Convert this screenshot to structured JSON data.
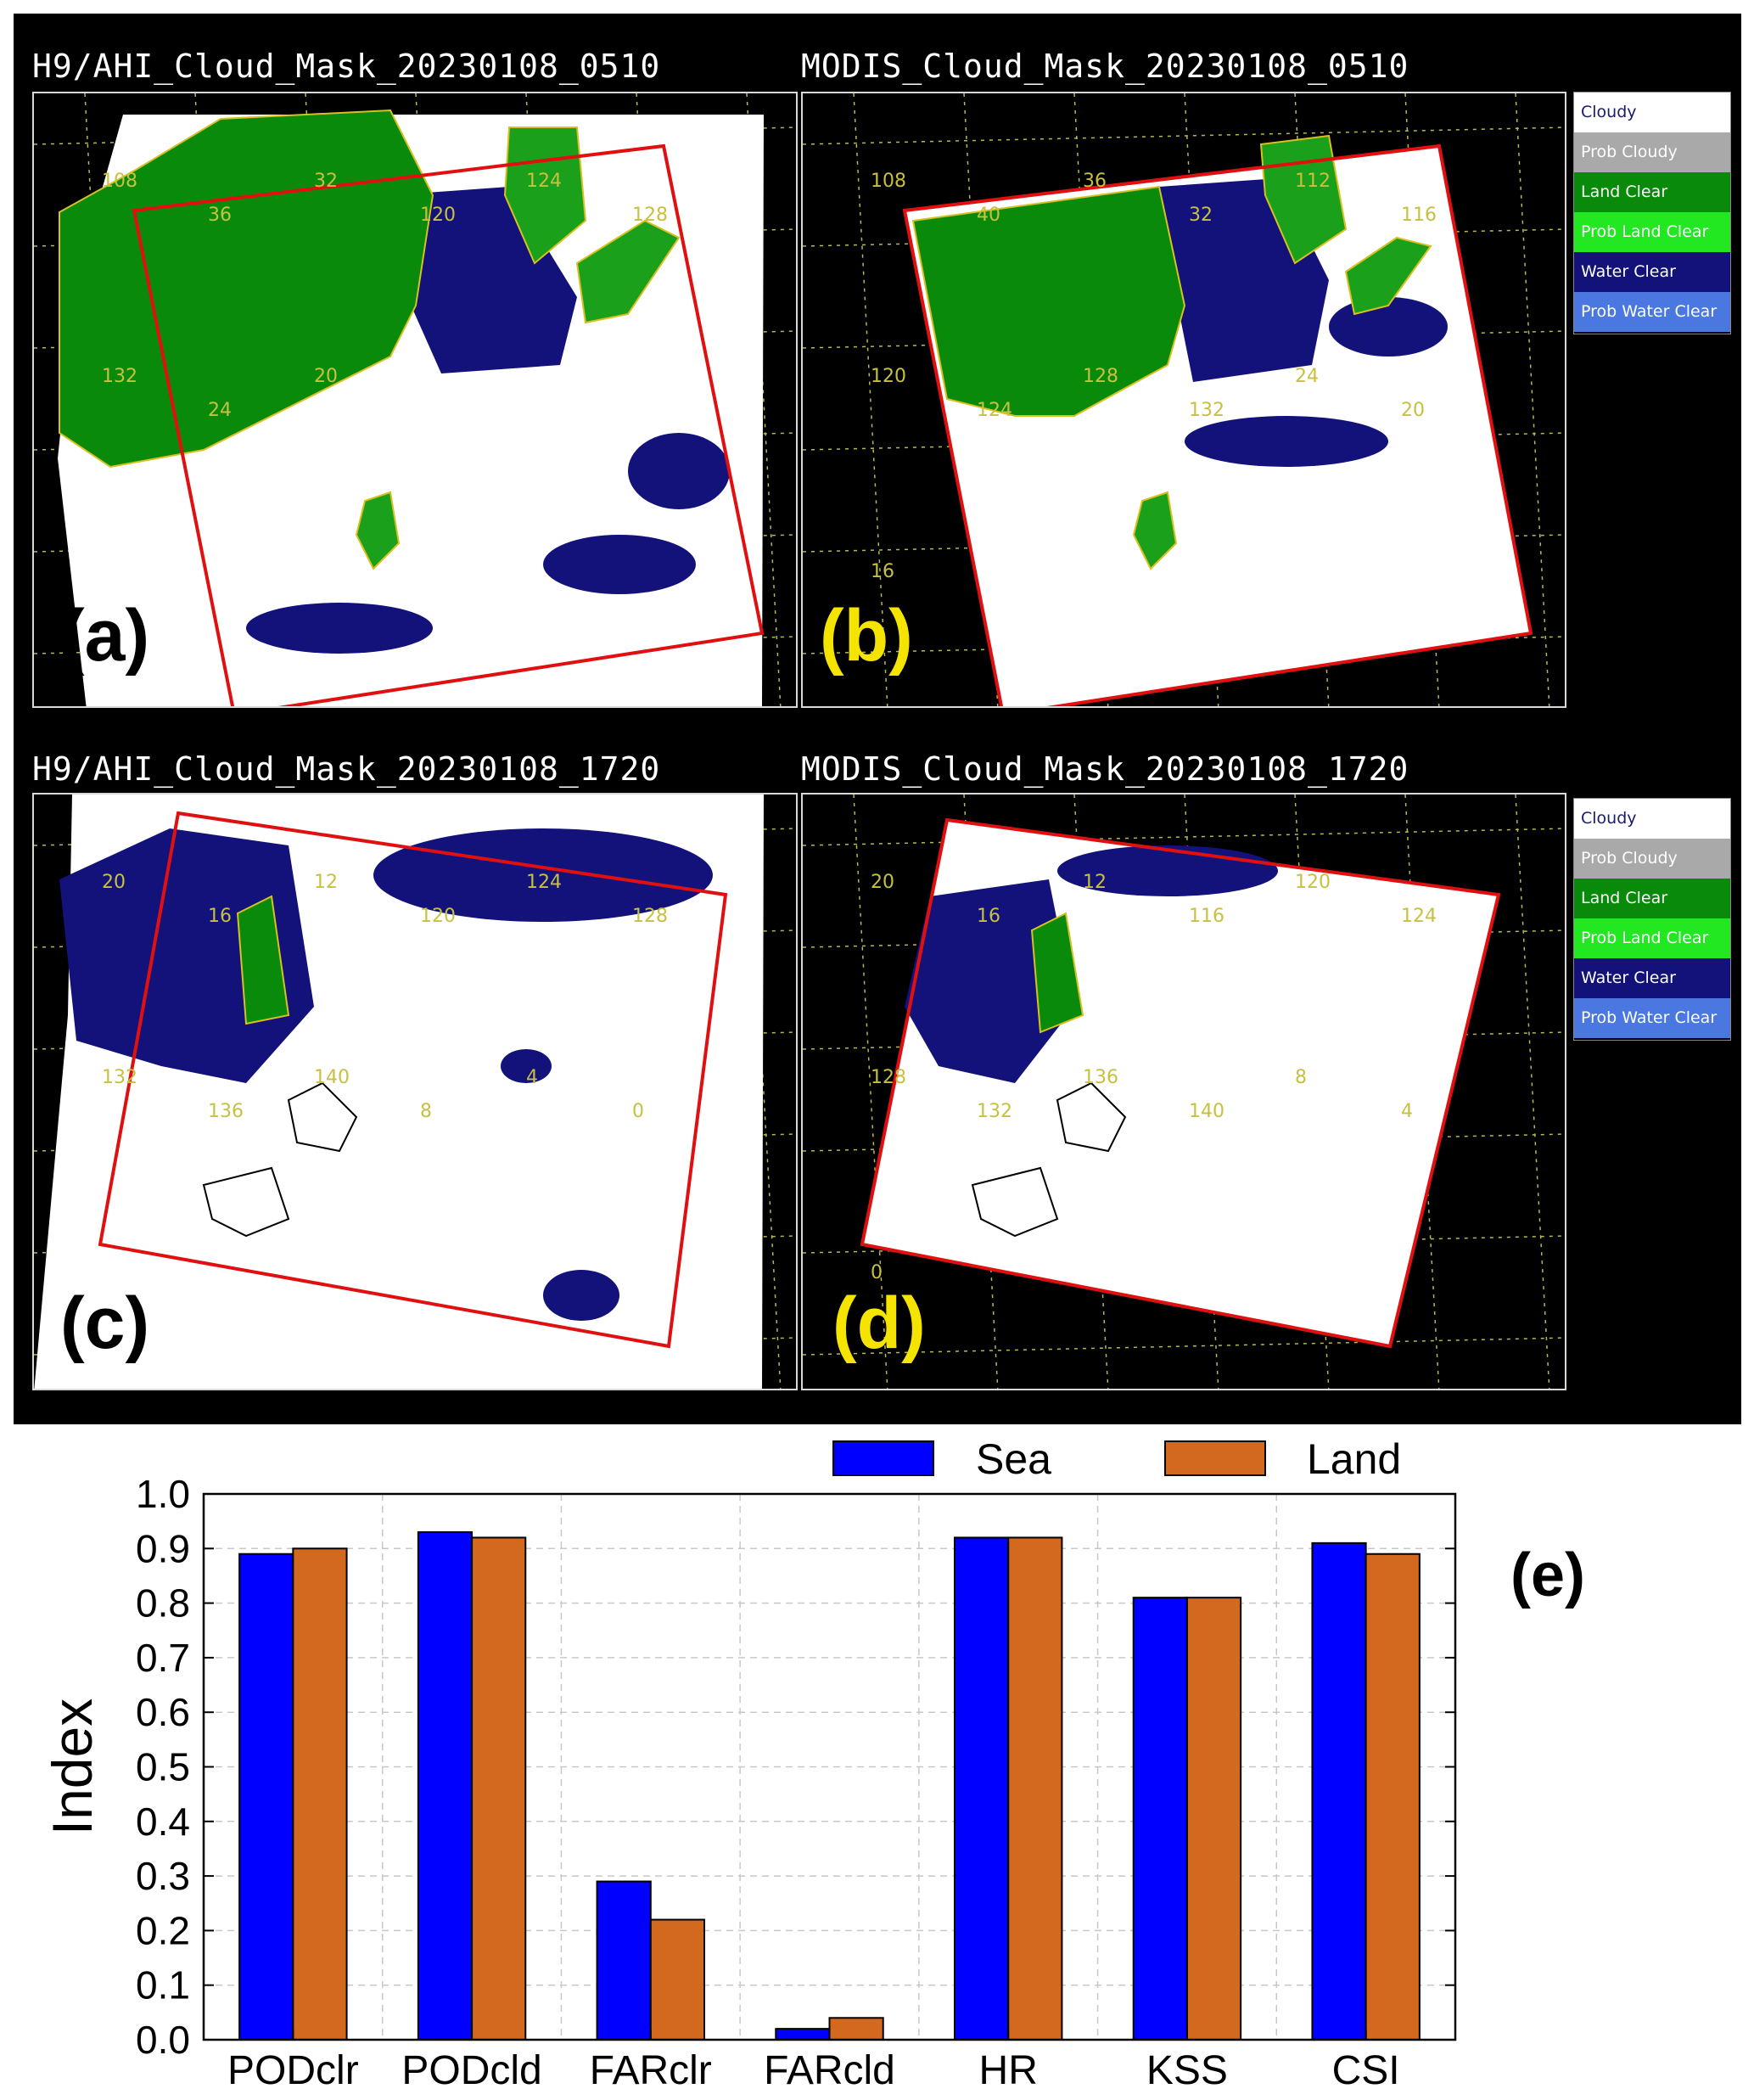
{
  "maps": [
    {
      "id": "a",
      "title": "H9/AHI_Cloud_Mask_20230108_0510",
      "label": "(a)",
      "label_color": "#000000",
      "grid_labels": [
        "108",
        "36",
        "32",
        "120",
        "124",
        "128",
        "132",
        "24",
        "20"
      ]
    },
    {
      "id": "b",
      "title": "MODIS_Cloud_Mask_20230108_0510",
      "label": "(b)",
      "label_color": "#f5e400",
      "grid_labels": [
        "108",
        "40",
        "36",
        "32",
        "112",
        "116",
        "120",
        "124",
        "128",
        "132",
        "24",
        "20",
        "16"
      ]
    },
    {
      "id": "c",
      "title": "H9/AHI_Cloud_Mask_20230108_1720",
      "label": "(c)",
      "label_color": "#000000",
      "grid_labels": [
        "20",
        "16",
        "12",
        "120",
        "124",
        "128",
        "132",
        "136",
        "140",
        "8",
        "4",
        "0"
      ]
    },
    {
      "id": "d",
      "title": "MODIS_Cloud_Mask_20230108_1720",
      "label": "(d)",
      "label_color": "#f5e400",
      "grid_labels": [
        "20",
        "16",
        "12",
        "116",
        "120",
        "124",
        "128",
        "132",
        "136",
        "140",
        "8",
        "4",
        "0"
      ]
    }
  ],
  "cloud_mask_legend": [
    {
      "label": "Cloudy",
      "bg": "#ffffff",
      "fg": "#1a1a6e"
    },
    {
      "label": "Prob Cloudy",
      "bg": "#a9a9a9",
      "fg": "#ffffff"
    },
    {
      "label": "Land Clear",
      "bg": "#0a8a0a",
      "fg": "#ffffff"
    },
    {
      "label": "Prob Land Clear",
      "bg": "#22e822",
      "fg": "#ffffff"
    },
    {
      "label": "Water Clear",
      "bg": "#12127a",
      "fg": "#ffffff"
    },
    {
      "label": "Prob Water Clear",
      "bg": "#4a78e0",
      "fg": "#ffffff"
    }
  ],
  "chart_data": {
    "type": "bar",
    "categories": [
      "PODclr",
      "PODcld",
      "FARclr",
      "FARcld",
      "HR",
      "KSS",
      "CSI"
    ],
    "series": [
      {
        "name": "Sea",
        "color": "#0000ff",
        "values": [
          0.89,
          0.93,
          0.29,
          0.02,
          0.92,
          0.81,
          0.91
        ]
      },
      {
        "name": "Land",
        "color": "#d2691e",
        "values": [
          0.9,
          0.92,
          0.22,
          0.04,
          0.92,
          0.81,
          0.89
        ]
      }
    ],
    "ylabel": "Index",
    "ylim": [
      0,
      1.0
    ],
    "yticks": [
      "0.0",
      "0.1",
      "0.2",
      "0.3",
      "0.4",
      "0.5",
      "0.6",
      "0.7",
      "0.8",
      "0.9",
      "1.0"
    ],
    "grid": true,
    "legend": "top-right",
    "panel_label": "(e)"
  }
}
